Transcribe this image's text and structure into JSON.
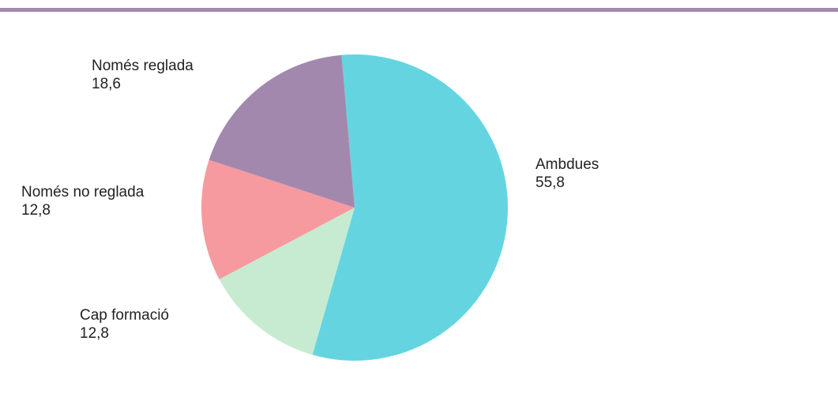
{
  "colors": {
    "rule": "#a38aaf",
    "background": "#ffffff",
    "text": "#222222"
  },
  "chart_data": {
    "type": "pie",
    "title": "",
    "start_angle_deg": -4.9,
    "direction": "clockwise",
    "slices": [
      {
        "label": "Ambdues",
        "value_text": "55,8",
        "value": 55.8,
        "color": "#64d5e0"
      },
      {
        "label": "Cap formació",
        "value_text": "12,8",
        "value": 12.8,
        "color": "#c6ebd1"
      },
      {
        "label": "Només no reglada",
        "value_text": "12,8",
        "value": 12.8,
        "color": "#f69aa0"
      },
      {
        "label": "Només reglada",
        "value_text": "18,6",
        "value": 18.6,
        "color": "#a388ae"
      }
    ]
  }
}
